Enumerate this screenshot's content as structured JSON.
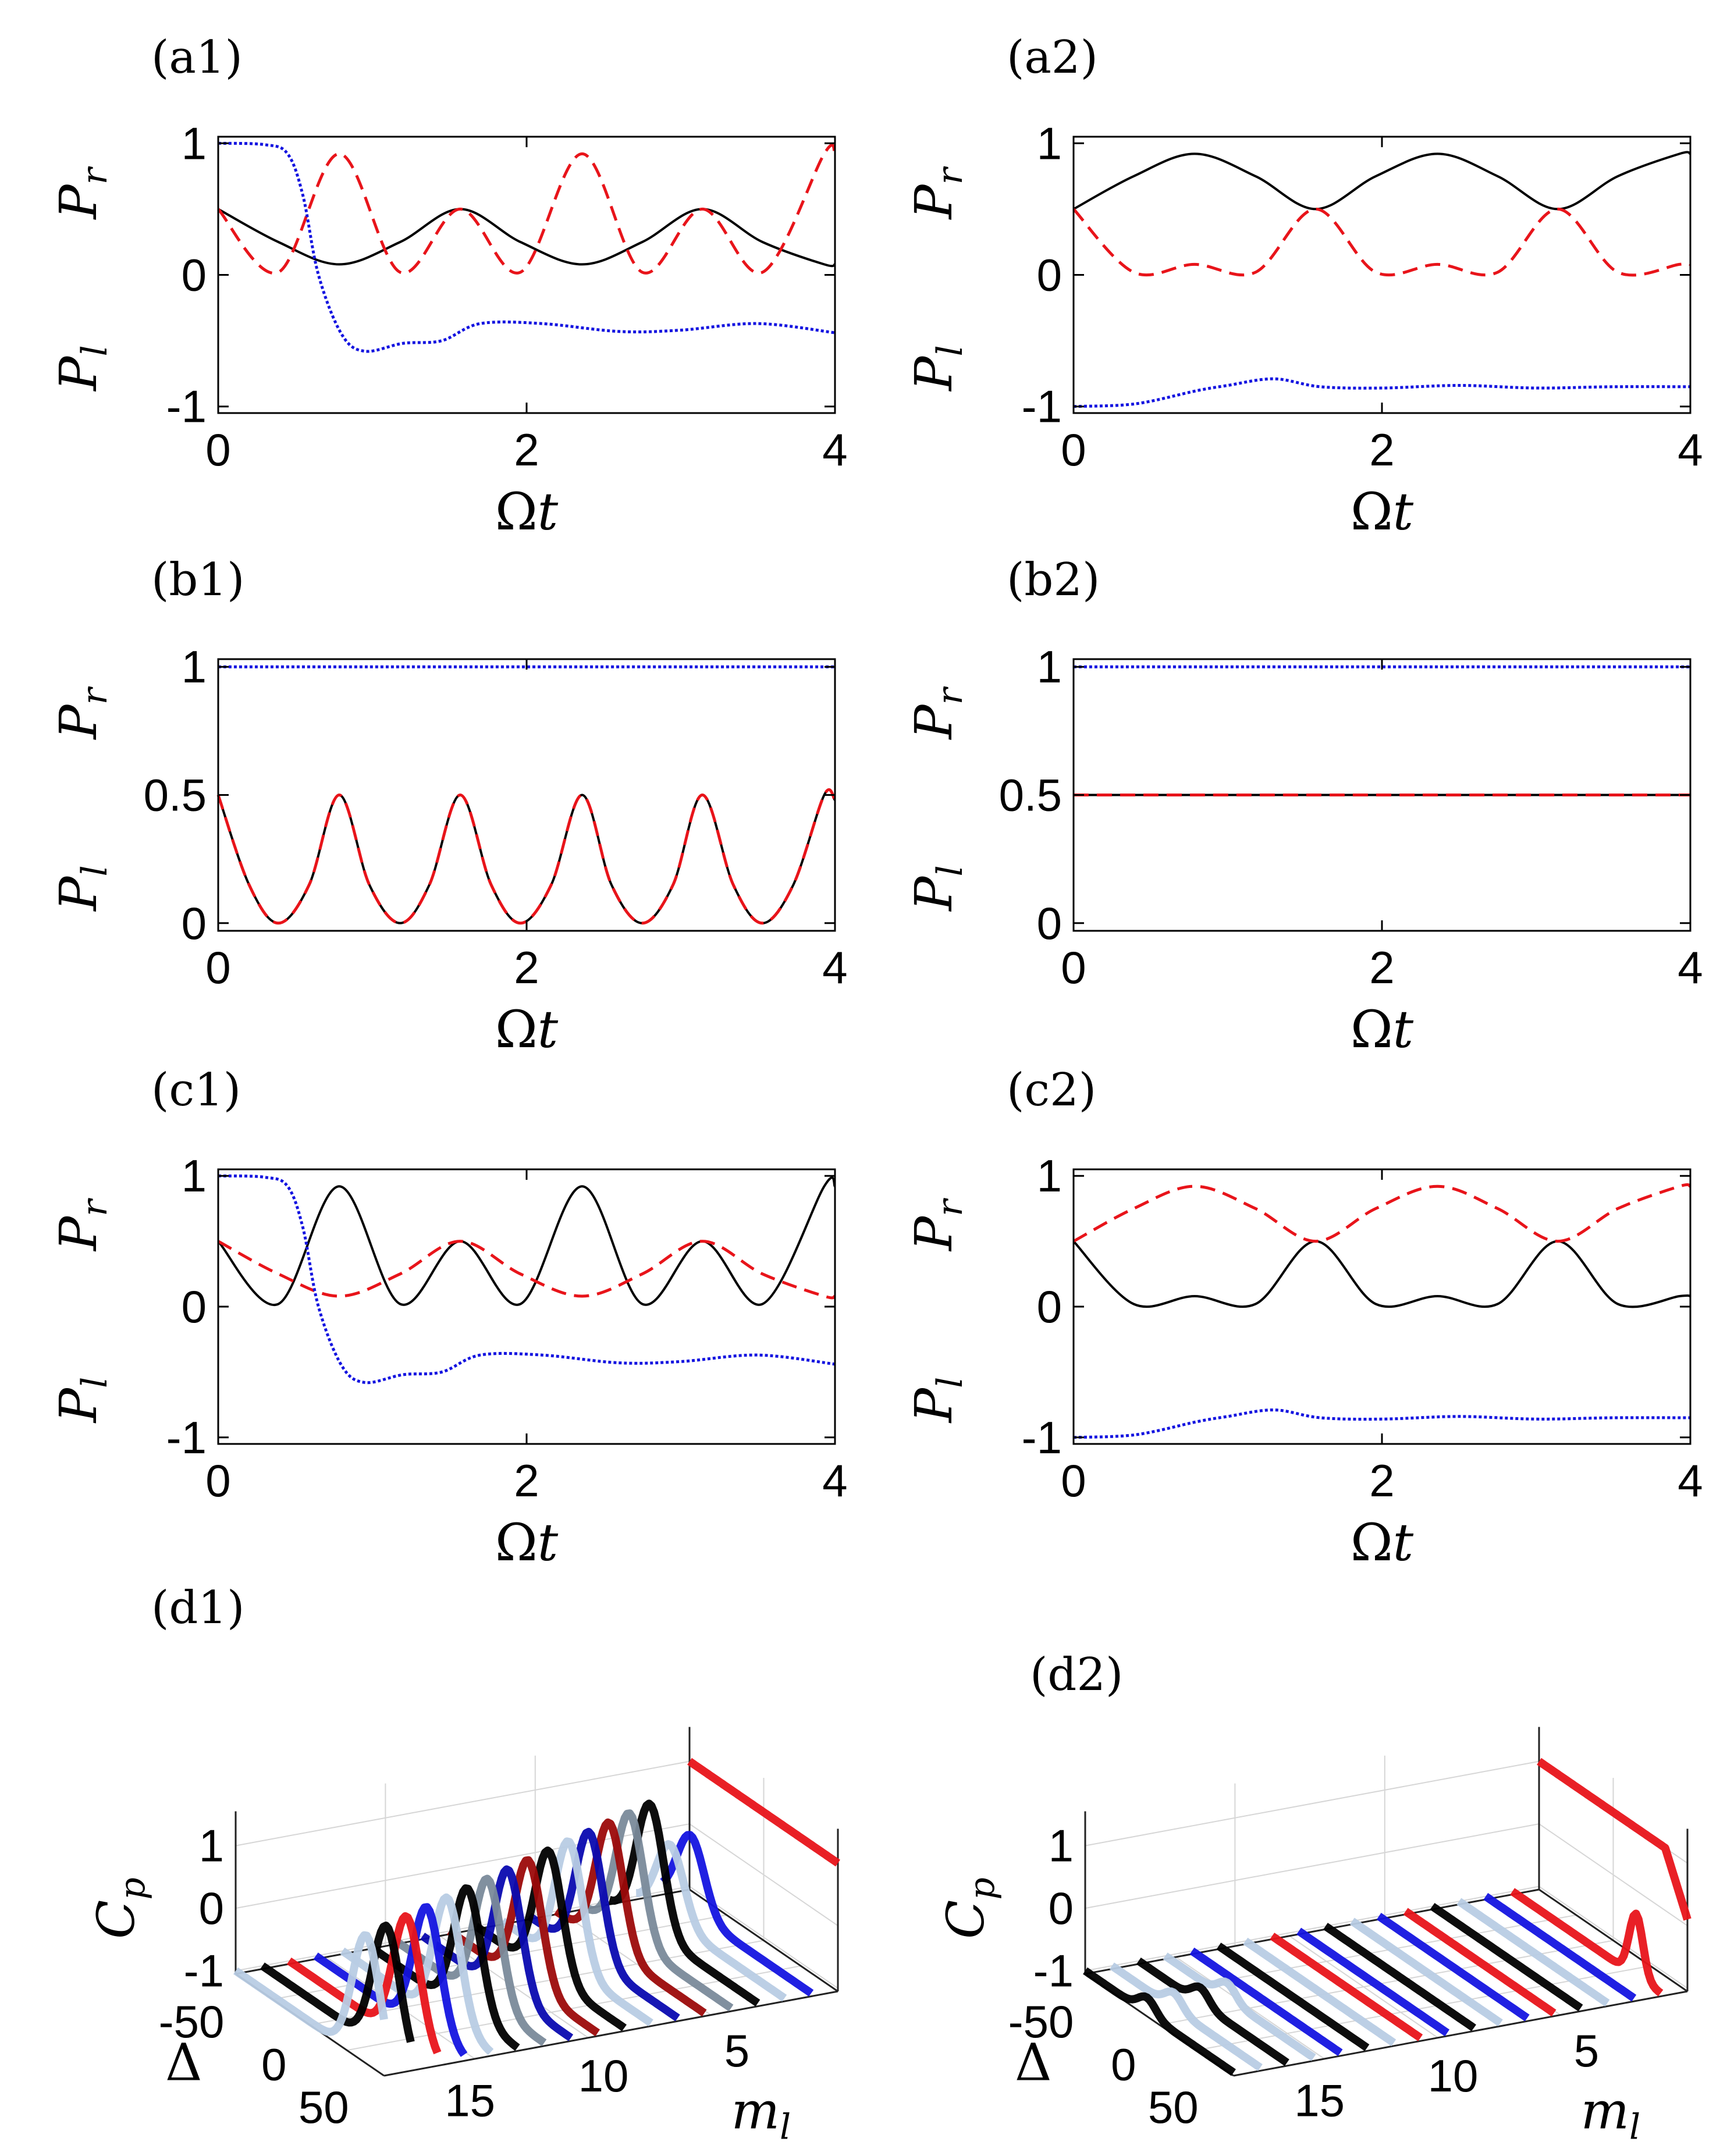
{
  "figure": {
    "colors": {
      "black": "#000000",
      "red": "#e8141a",
      "blue": "#1414e0",
      "darkred": "#9c0a0a",
      "navy": "#0a0ab0",
      "grey": "#7a8a9a",
      "lightblue": "#b8cce4"
    },
    "common": {
      "xlabel": "Ωt",
      "ylabel_top": "P",
      "ylabel_top_sub": "r",
      "ylabel_bottom": "P",
      "ylabel_bottom_sub": "l"
    }
  },
  "chart_data": [
    {
      "id": "a1",
      "title": "(a1)",
      "type": "line",
      "xlim": [
        0,
        4
      ],
      "ylim": [
        -1.05,
        1.05
      ],
      "xticks": [
        "0",
        "2",
        "4"
      ],
      "yticks": [
        "1",
        "0",
        "-1"
      ],
      "ytick_values": [
        1,
        0,
        -1
      ],
      "series": [
        {
          "name": "solid",
          "style": "solid",
          "color": "#000000",
          "x": [
            0,
            0.39,
            0.785,
            1.18,
            1.57,
            1.96,
            2.36,
            2.75,
            3.14,
            3.53,
            3.93,
            4.0
          ],
          "y": [
            0.5,
            0.25,
            0.08,
            0.25,
            0.5,
            0.25,
            0.08,
            0.25,
            0.5,
            0.25,
            0.08,
            0.08
          ]
        },
        {
          "name": "dashed",
          "style": "dashed",
          "color": "#e8141a",
          "x": [
            0,
            0.39,
            0.785,
            1.18,
            1.57,
            1.96,
            2.36,
            2.75,
            3.14,
            3.53,
            3.93,
            4.0
          ],
          "y": [
            0.5,
            0.02,
            0.92,
            0.02,
            0.5,
            0.02,
            0.92,
            0.02,
            0.5,
            0.02,
            0.92,
            0.92
          ]
        },
        {
          "name": "dotted",
          "style": "dotted",
          "color": "#1414e0",
          "x": [
            0,
            0.3,
            0.45,
            0.55,
            0.65,
            0.8,
            0.95,
            1.2,
            1.45,
            1.7,
            2.1,
            2.6,
            3.0,
            3.5,
            4.0
          ],
          "y": [
            1.0,
            0.99,
            0.92,
            0.6,
            0.0,
            -0.45,
            -0.58,
            -0.52,
            -0.5,
            -0.37,
            -0.37,
            -0.43,
            -0.42,
            -0.37,
            -0.44
          ]
        }
      ]
    },
    {
      "id": "a2",
      "title": "(a2)",
      "type": "line",
      "xlim": [
        0,
        4
      ],
      "ylim": [
        -1.05,
        1.05
      ],
      "xticks": [
        "0",
        "2",
        "4"
      ],
      "yticks": [
        "1",
        "0",
        "-1"
      ],
      "ytick_values": [
        1,
        0,
        -1
      ],
      "series": [
        {
          "name": "solid",
          "style": "solid",
          "color": "#000000",
          "x": [
            0,
            0.39,
            0.785,
            1.18,
            1.57,
            1.96,
            2.36,
            2.75,
            3.14,
            3.53,
            3.93,
            4.0
          ],
          "y": [
            0.5,
            0.75,
            0.92,
            0.75,
            0.5,
            0.75,
            0.92,
            0.75,
            0.5,
            0.75,
            0.92,
            0.92
          ]
        },
        {
          "name": "dashed",
          "style": "dashed",
          "color": "#e8141a",
          "x": [
            0,
            0.39,
            0.785,
            1.18,
            1.57,
            1.96,
            2.36,
            2.75,
            3.14,
            3.53,
            3.93,
            4.0
          ],
          "y": [
            0.5,
            0.02,
            0.08,
            0.02,
            0.5,
            0.02,
            0.08,
            0.02,
            0.5,
            0.02,
            0.08,
            0.08
          ]
        },
        {
          "name": "dotted",
          "style": "dotted",
          "color": "#1414e0",
          "x": [
            0,
            0.4,
            0.8,
            1.0,
            1.3,
            1.6,
            2.0,
            2.5,
            3.0,
            3.5,
            4.0
          ],
          "y": [
            -1.0,
            -0.98,
            -0.88,
            -0.84,
            -0.79,
            -0.85,
            -0.86,
            -0.84,
            -0.86,
            -0.85,
            -0.85
          ]
        }
      ]
    },
    {
      "id": "b1",
      "title": "(b1)",
      "type": "line",
      "xlim": [
        0,
        4
      ],
      "ylim": [
        -0.03,
        1.03
      ],
      "xticks": [
        "0",
        "2",
        "4"
      ],
      "yticks": [
        "1",
        "0.5",
        "0"
      ],
      "ytick_values": [
        1,
        0.5,
        0
      ],
      "series": [
        {
          "name": "solid",
          "style": "solid",
          "color": "#000000",
          "x": [
            0,
            0.2,
            0.39,
            0.59,
            0.785,
            0.98,
            1.18,
            1.37,
            1.57,
            1.77,
            1.96,
            2.16,
            2.36,
            2.55,
            2.75,
            2.95,
            3.14,
            3.34,
            3.53,
            3.73,
            3.93,
            4.0
          ],
          "y": [
            0.5,
            0.15,
            0.0,
            0.15,
            0.5,
            0.15,
            0.0,
            0.15,
            0.5,
            0.15,
            0.0,
            0.15,
            0.5,
            0.15,
            0.0,
            0.15,
            0.5,
            0.15,
            0.0,
            0.15,
            0.5,
            0.48
          ]
        },
        {
          "name": "dashed",
          "style": "dashed",
          "color": "#e8141a",
          "x": [
            0,
            0.2,
            0.39,
            0.59,
            0.785,
            0.98,
            1.18,
            1.37,
            1.57,
            1.77,
            1.96,
            2.16,
            2.36,
            2.55,
            2.75,
            2.95,
            3.14,
            3.34,
            3.53,
            3.73,
            3.93,
            4.0
          ],
          "y": [
            0.5,
            0.15,
            0.0,
            0.15,
            0.5,
            0.15,
            0.0,
            0.15,
            0.5,
            0.15,
            0.0,
            0.15,
            0.5,
            0.15,
            0.0,
            0.15,
            0.5,
            0.15,
            0.0,
            0.15,
            0.5,
            0.48
          ]
        },
        {
          "name": "dotted",
          "style": "dotted",
          "color": "#1414e0",
          "x": [
            0,
            4
          ],
          "y": [
            1.0,
            1.0
          ]
        }
      ]
    },
    {
      "id": "b2",
      "title": "(b2)",
      "type": "line",
      "xlim": [
        0,
        4
      ],
      "ylim": [
        -0.03,
        1.03
      ],
      "xticks": [
        "0",
        "2",
        "4"
      ],
      "yticks": [
        "1",
        "0.5",
        "0"
      ],
      "ytick_values": [
        1,
        0.5,
        0
      ],
      "series": [
        {
          "name": "solid",
          "style": "solid",
          "color": "#000000",
          "x": [
            0,
            4
          ],
          "y": [
            0.5,
            0.5
          ]
        },
        {
          "name": "dashed",
          "style": "dashed",
          "color": "#e8141a",
          "x": [
            0,
            4
          ],
          "y": [
            0.5,
            0.5
          ]
        },
        {
          "name": "dotted",
          "style": "dotted",
          "color": "#1414e0",
          "x": [
            0,
            4
          ],
          "y": [
            1.0,
            1.0
          ]
        }
      ]
    },
    {
      "id": "c1",
      "title": "(c1)",
      "type": "line",
      "xlim": [
        0,
        4
      ],
      "ylim": [
        -1.05,
        1.05
      ],
      "xticks": [
        "0",
        "2",
        "4"
      ],
      "yticks": [
        "1",
        "0",
        "-1"
      ],
      "ytick_values": [
        1,
        0,
        -1
      ],
      "series": [
        {
          "name": "solid",
          "style": "solid",
          "color": "#000000",
          "x": [
            0,
            0.39,
            0.785,
            1.18,
            1.57,
            1.96,
            2.36,
            2.75,
            3.14,
            3.53,
            3.93,
            4.0
          ],
          "y": [
            0.5,
            0.02,
            0.92,
            0.02,
            0.5,
            0.02,
            0.92,
            0.02,
            0.5,
            0.02,
            0.92,
            0.92
          ]
        },
        {
          "name": "dashed",
          "style": "dashed",
          "color": "#e8141a",
          "x": [
            0,
            0.39,
            0.785,
            1.18,
            1.57,
            1.96,
            2.36,
            2.75,
            3.14,
            3.53,
            3.93,
            4.0
          ],
          "y": [
            0.5,
            0.25,
            0.08,
            0.25,
            0.5,
            0.25,
            0.08,
            0.25,
            0.5,
            0.25,
            0.08,
            0.08
          ]
        },
        {
          "name": "dotted",
          "style": "dotted",
          "color": "#1414e0",
          "x": [
            0,
            0.3,
            0.45,
            0.55,
            0.65,
            0.8,
            0.95,
            1.2,
            1.45,
            1.7,
            2.1,
            2.6,
            3.0,
            3.5,
            4.0
          ],
          "y": [
            1.0,
            0.99,
            0.92,
            0.6,
            0.0,
            -0.45,
            -0.58,
            -0.52,
            -0.5,
            -0.37,
            -0.37,
            -0.43,
            -0.42,
            -0.37,
            -0.44
          ]
        }
      ]
    },
    {
      "id": "c2",
      "title": "(c2)",
      "type": "line",
      "xlim": [
        0,
        4
      ],
      "ylim": [
        -1.05,
        1.05
      ],
      "xticks": [
        "0",
        "2",
        "4"
      ],
      "yticks": [
        "1",
        "0",
        "-1"
      ],
      "ytick_values": [
        1,
        0,
        -1
      ],
      "series": [
        {
          "name": "solid",
          "style": "solid",
          "color": "#000000",
          "x": [
            0,
            0.39,
            0.785,
            1.18,
            1.57,
            1.96,
            2.36,
            2.75,
            3.14,
            3.53,
            3.93,
            4.0
          ],
          "y": [
            0.5,
            0.02,
            0.08,
            0.02,
            0.5,
            0.02,
            0.08,
            0.02,
            0.5,
            0.02,
            0.08,
            0.08
          ]
        },
        {
          "name": "dashed",
          "style": "dashed",
          "color": "#e8141a",
          "x": [
            0,
            0.39,
            0.785,
            1.18,
            1.57,
            1.96,
            2.36,
            2.75,
            3.14,
            3.53,
            3.93,
            4.0
          ],
          "y": [
            0.5,
            0.75,
            0.92,
            0.75,
            0.5,
            0.75,
            0.92,
            0.75,
            0.5,
            0.75,
            0.92,
            0.92
          ]
        },
        {
          "name": "dotted",
          "style": "dotted",
          "color": "#1414e0",
          "x": [
            0,
            0.4,
            0.8,
            1.0,
            1.3,
            1.6,
            2.0,
            2.5,
            3.0,
            3.5,
            4.0
          ],
          "y": [
            -1.0,
            -0.98,
            -0.88,
            -0.84,
            -0.79,
            -0.85,
            -0.86,
            -0.84,
            -0.86,
            -0.85,
            -0.85
          ]
        }
      ]
    },
    {
      "id": "d1",
      "title": "(d1)",
      "type": "area",
      "zlabel": "C",
      "zlabel_sub": "p",
      "ylabel": "Δ",
      "xlabel": "m",
      "xlabel_sub": "l",
      "zticks": [
        "1",
        "0",
        "-1"
      ],
      "delta_ticks": [
        "-50",
        "0",
        "50"
      ],
      "ml_ticks": [
        "5",
        "10",
        "15"
      ],
      "ml_range": [
        1,
        18
      ],
      "delta_range": [
        -60,
        60
      ],
      "ribbon_colors": [
        "#e8141a",
        "#1414e0",
        "#b8cce4",
        "#000000",
        "#7a8a9a",
        "#9c0a0a",
        "#0a0ab0",
        "#b8cce4",
        "#000000",
        "#9c0a0a",
        "#0a0ab0",
        "#7a8a9a",
        "#000000",
        "#b8cce4",
        "#1414e0",
        "#e8141a",
        "#000000",
        "#b8cce4"
      ]
    },
    {
      "id": "d2",
      "title": "(d2)",
      "type": "area",
      "zlabel": "C",
      "zlabel_sub": "p",
      "ylabel": "Δ",
      "xlabel": "m",
      "xlabel_sub": "l",
      "zticks": [
        "1",
        "0",
        "-1"
      ],
      "delta_ticks": [
        "-50",
        "0",
        "50"
      ],
      "ml_ticks": [
        "5",
        "10",
        "15"
      ],
      "ml_range": [
        1,
        18
      ],
      "delta_range": [
        -60,
        60
      ],
      "ribbon_colors": [
        "#e8141a",
        "#e8141a",
        "#1414e0",
        "#b8cce4",
        "#000000",
        "#e8141a",
        "#1414e0",
        "#b8cce4",
        "#000000",
        "#1414e0",
        "#e8141a",
        "#b8cce4",
        "#000000",
        "#1414e0",
        "#b8cce4",
        "#000000",
        "#b8cce4",
        "#000000"
      ]
    }
  ]
}
